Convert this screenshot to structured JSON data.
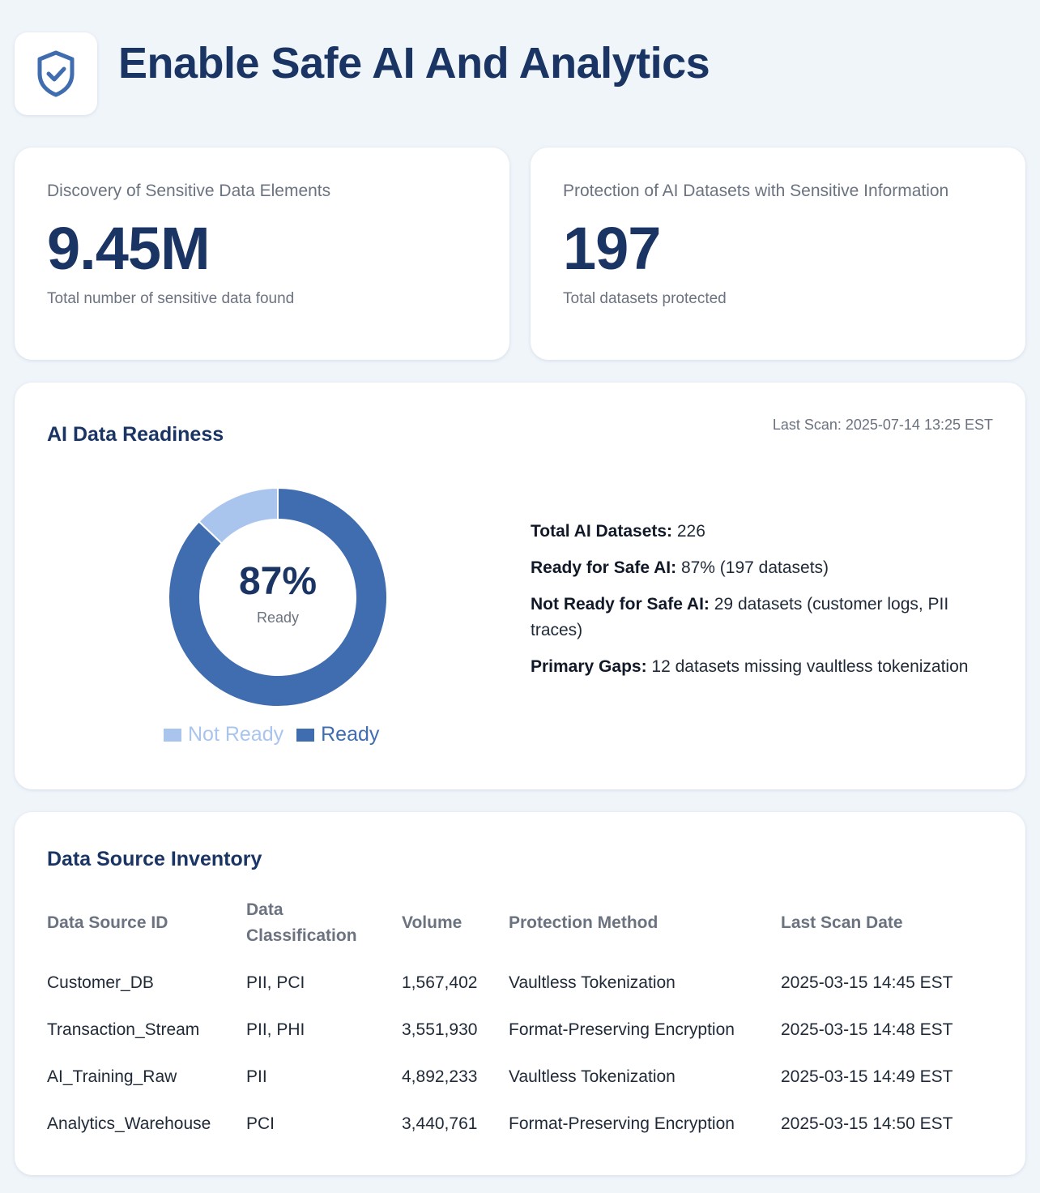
{
  "header": {
    "title": "Enable Safe AI And Analytics",
    "icon": "shield-check-icon"
  },
  "kpis": {
    "discovery": {
      "label": "Discovery of Sensitive Data Elements",
      "value": "9.45M",
      "sub": "Total number of sensitive data found"
    },
    "protection": {
      "label": "Protection of AI Datasets with Sensitive Information",
      "value": "197",
      "sub": "Total datasets protected"
    }
  },
  "readiness": {
    "title": "AI Data Readiness",
    "last_scan": "Last Scan: 2025-07-14 13:25 EST",
    "center_value": "87%",
    "center_label": "Ready",
    "stats": [
      {
        "label": "Total AI Datasets:",
        "value": "226"
      },
      {
        "label": "Ready for Safe AI:",
        "value": "87% (197 datasets)"
      },
      {
        "label": "Not Ready for Safe AI:",
        "value": "29 datasets (customer logs, PII traces)"
      },
      {
        "label": "Primary Gaps:",
        "value": "12 datasets missing vaultless tokenization"
      }
    ]
  },
  "chart_data": {
    "type": "pie",
    "variant": "donut",
    "categories": [
      "Not Ready",
      "Ready"
    ],
    "values": [
      29,
      197
    ],
    "colors": [
      "#a9c5ee",
      "#3f6daf"
    ],
    "title": "",
    "legend": "bottom"
  },
  "inventory": {
    "title": "Data Source Inventory",
    "columns": [
      "Data Source ID",
      "Data Classification",
      "Volume",
      "Protection Method",
      "Last Scan Date"
    ],
    "rows": [
      [
        "Customer_DB",
        "PII, PCI",
        "1,567,402",
        "Vaultless Tokenization",
        "2025-03-15 14:45 EST"
      ],
      [
        "Transaction_Stream",
        "PII, PHI",
        "3,551,930",
        "Format-Preserving Encryption",
        "2025-03-15 14:48 EST"
      ],
      [
        "AI_Training_Raw",
        "PII",
        "4,892,233",
        "Vaultless Tokenization",
        "2025-03-15 14:49 EST"
      ],
      [
        "Analytics_Warehouse",
        "PCI",
        "3,440,761",
        "Format-Preserving Encryption",
        "2025-03-15 14:50 EST"
      ]
    ]
  }
}
